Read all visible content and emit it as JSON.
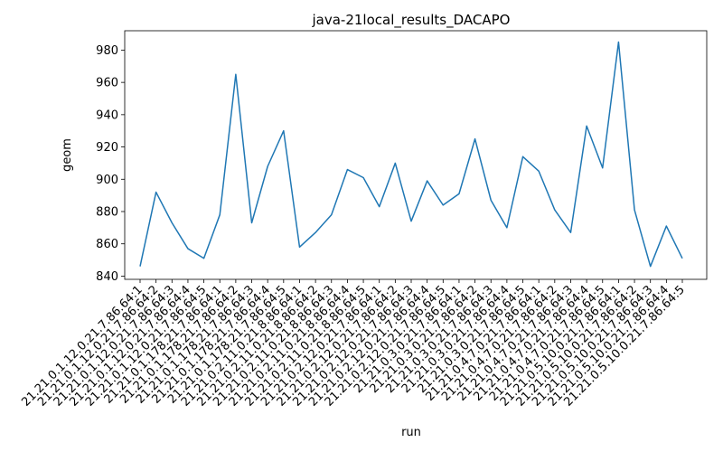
{
  "chart_data": {
    "type": "line",
    "title": "java-21local_results_DACAPO",
    "xlabel": "run",
    "ylabel": "geom",
    "ylim": [
      838,
      992
    ],
    "yticks": [
      840,
      860,
      880,
      900,
      920,
      940,
      960,
      980
    ],
    "grid": false,
    "line_color": "#1f77b4",
    "categories": [
      "21.21.0.1.12.0.21.7.86.64:1",
      "21.21.0.1.12.0.21.7.86.64:2",
      "21.21.0.1.12.0.21.7.86.64:3",
      "21.21.0.1.12.0.21.7.86.64:4",
      "21.21.0.1.12.0.21.7.86.64:5",
      "21.21.0.1.178.21.7.86.64:1",
      "21.21.0.1.178.21.7.86.64:2",
      "21.21.0.1.178.21.7.86.64:3",
      "21.21.0.1.178.21.7.86.64:4",
      "21.21.0.1.178.21.7.86.64:5",
      "21.21.0.2.11.0.21.8.86.64:1",
      "21.21.0.2.11.0.21.8.86.64:2",
      "21.21.0.2.11.0.21.8.86.64:3",
      "21.21.0.2.11.0.21.8.86.64:4",
      "21.21.0.2.11.0.21.8.86.64:5",
      "21.21.0.2.12.0.21.7.86.64:1",
      "21.21.0.2.12.0.21.7.86.64:2",
      "21.21.0.2.12.0.21.7.86.64:3",
      "21.21.0.2.12.0.21.7.86.64:4",
      "21.21.0.2.12.0.21.7.86.64:5",
      "21.21.0.3.0.21.7.86.64:1",
      "21.21.0.3.0.21.7.86.64:2",
      "21.21.0.3.0.21.7.86.64:3",
      "21.21.0.3.0.21.7.86.64:4",
      "21.21.0.3.0.21.7.86.64:5",
      "21.21.0.4.7.0.21.7.86.64:1",
      "21.21.0.4.7.0.21.7.86.64:2",
      "21.21.0.4.7.0.21.7.86.64:3",
      "21.21.0.4.7.0.21.7.86.64:4",
      "21.21.0.4.7.0.21.7.86.64:5",
      "21.21.0.5.10.0.21.7.86.64:1",
      "21.21.0.5.10.0.21.7.86.64:2",
      "21.21.0.5.10.0.21.7.86.64:3",
      "21.21.0.5.10.0.21.7.86.64:4",
      "21.21.0.5.10.0.21.7.86.64:5"
    ],
    "values": [
      846,
      892,
      873,
      857,
      851,
      878,
      965,
      873,
      908,
      930,
      858,
      867,
      878,
      906,
      901,
      883,
      910,
      874,
      899,
      884,
      891,
      925,
      887,
      870,
      914,
      905,
      881,
      867,
      933,
      907,
      985,
      881,
      846,
      871,
      851
    ]
  }
}
